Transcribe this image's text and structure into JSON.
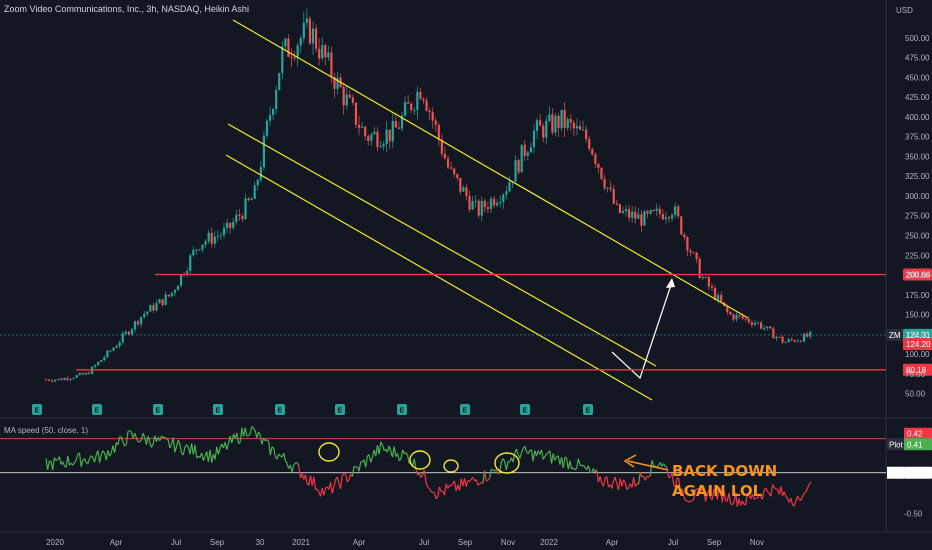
{
  "title": "Zoom Video Communications, Inc., 3h, NASDAQ, Heikin Ashi",
  "currency": "USD",
  "chart_data": {
    "type": "candlestick",
    "y_ticks": [
      "500.00",
      "475.00",
      "450.00",
      "425.00",
      "400.00",
      "375.00",
      "350.00",
      "325.00",
      "300.00",
      "275.00",
      "250.00",
      "225.00",
      "200.00",
      "175.00",
      "150.00",
      "125.00",
      "100.00",
      "75.00",
      "50.00"
    ],
    "y_tick_values": [
      500,
      475,
      450,
      425,
      400,
      375,
      350,
      325,
      300,
      275,
      250,
      225,
      200,
      175,
      150,
      125,
      100,
      75,
      50
    ],
    "ylim": [
      42,
      520
    ],
    "x_ticks": [
      "2020",
      "Apr",
      "Jul",
      "Sep",
      "30",
      "2021",
      "Apr",
      "Jul",
      "Sep",
      "Nov",
      "2022",
      "Apr",
      "Jul",
      "Sep",
      "Nov"
    ],
    "price_path": [
      [
        "2020-01",
        68
      ],
      [
        "2020-02",
        75
      ],
      [
        "2020-03",
        110
      ],
      [
        "2020-04",
        150
      ],
      [
        "2020-05",
        175
      ],
      [
        "2020-06",
        240
      ],
      [
        "2020-07",
        255
      ],
      [
        "2020-08",
        300
      ],
      [
        "2020-08-31",
        400
      ],
      [
        "2020-09",
        480
      ],
      [
        "2020-10",
        510
      ],
      [
        "2020-11",
        440
      ],
      [
        "2020-12",
        375
      ],
      [
        "2021-01",
        380
      ],
      [
        "2021-02",
        440
      ],
      [
        "2021-03",
        330
      ],
      [
        "2021-04",
        280
      ],
      [
        "2021-05",
        310
      ],
      [
        "2021-06",
        380
      ],
      [
        "2021-07",
        395
      ],
      [
        "2021-08",
        370
      ],
      [
        "2021-09",
        280
      ],
      [
        "2021-10",
        270
      ],
      [
        "2021-11",
        285
      ],
      [
        "2021-12",
        200
      ],
      [
        "2022-01",
        150
      ],
      [
        "2022-02",
        140
      ],
      [
        "2022-03",
        115
      ],
      [
        "2022-04",
        124
      ]
    ],
    "series": [
      {
        "name": "ZM",
        "last_value": "124.31",
        "color": "#26a69a"
      }
    ],
    "levels": [
      {
        "value": 200.66,
        "label": "200.66",
        "color": "#f23645"
      },
      {
        "value": 80.18,
        "label": "80.18",
        "color": "#f23645"
      },
      {
        "value": 124.2,
        "label": "124.20",
        "color": "#f23645"
      }
    ],
    "annotations": [
      "BACK DOWN",
      "AGAIN LOL"
    ],
    "earnings_marker": "E",
    "indicator": {
      "title": "MA speed (50, close, 1)",
      "y_ticks": [
        "0.00",
        "-0.50"
      ],
      "y_tick_values": [
        0.0,
        -0.5
      ],
      "ylim": [
        -0.68,
        0.55
      ],
      "levels": [
        {
          "value": 0.42,
          "label": "0.42",
          "color": "#f23645"
        },
        {
          "value": 0.41,
          "label": "0.41",
          "prefix": "Plot",
          "color": "#4caf50"
        },
        {
          "value": 0.0,
          "label": "0.00",
          "prefix": "Plot",
          "color": "#ffffff"
        }
      ]
    }
  },
  "colors": {
    "background": "#131722",
    "up": "#26a69a",
    "down": "#ef5350",
    "channel": "#f4e829",
    "level": "#f23645",
    "projection": "#ffffff",
    "ind_up": "#4caf50",
    "ind_down": "#f23645",
    "annotation": "#f7931a"
  }
}
